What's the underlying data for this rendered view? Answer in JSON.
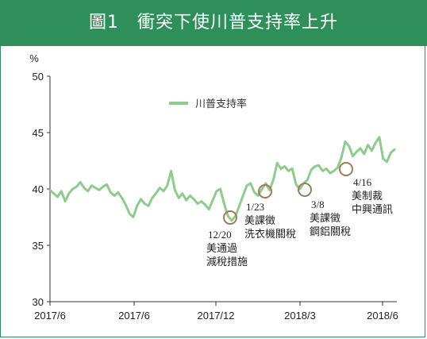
{
  "title": "圖1　衝突下使川普支持率上升",
  "colors": {
    "header_bg": "#2f8f5b",
    "series": "#8fcb8f",
    "circle": "#a0785a",
    "axis": "#333333"
  },
  "chart_data": {
    "type": "line",
    "ylabel": "%",
    "ylim": [
      30,
      50
    ],
    "yticks": [
      "30",
      "35",
      "40",
      "45",
      "50"
    ],
    "xticks": [
      "2017/6",
      "2017/6",
      "2017/12",
      "2018/3",
      "2018/6"
    ],
    "grid": false,
    "legend_position": "top-center",
    "series": [
      {
        "name": "川普支持率",
        "values": [
          39.9,
          39.6,
          39.3,
          39.8,
          38.9,
          39.6,
          40.0,
          40.2,
          40.6,
          40.1,
          39.8,
          40.3,
          40.1,
          39.9,
          40.2,
          40.4,
          39.7,
          39.4,
          39.7,
          39.2,
          38.6,
          37.8,
          37.5,
          38.5,
          39.1,
          38.7,
          38.5,
          39.2,
          39.6,
          40.1,
          39.8,
          40.3,
          41.6,
          39.9,
          39.2,
          39.6,
          39.0,
          39.4,
          39.1,
          38.7,
          38.9,
          38.6,
          38.2,
          39.0,
          39.8,
          40.0,
          38.7,
          37.6,
          37.2,
          37.6,
          38.5,
          39.4,
          40.3,
          40.5,
          39.7,
          39.4,
          40.0,
          40.5,
          39.9,
          40.8,
          42.3,
          41.8,
          42.0,
          41.6,
          41.8,
          40.4,
          40.0,
          40.5,
          40.8,
          41.7,
          42.0,
          42.1,
          41.6,
          41.8,
          41.4,
          41.6,
          41.9,
          42.8,
          44.2,
          43.8,
          42.9,
          43.3,
          43.6,
          43.1,
          43.9,
          43.4,
          44.1,
          44.6,
          42.7,
          42.4,
          43.2,
          43.5
        ]
      }
    ],
    "annotations": [
      {
        "date": "12/20",
        "lines": [
          "美通過",
          "減稅措施"
        ]
      },
      {
        "date": "1/23",
        "lines": [
          "美課徵",
          "洗衣機關稅"
        ]
      },
      {
        "date": "3/8",
        "lines": [
          "美課徵",
          "鋼鋁關稅"
        ]
      },
      {
        "date": "4/16",
        "lines": [
          "美制裁",
          "中興通訊"
        ]
      }
    ]
  }
}
